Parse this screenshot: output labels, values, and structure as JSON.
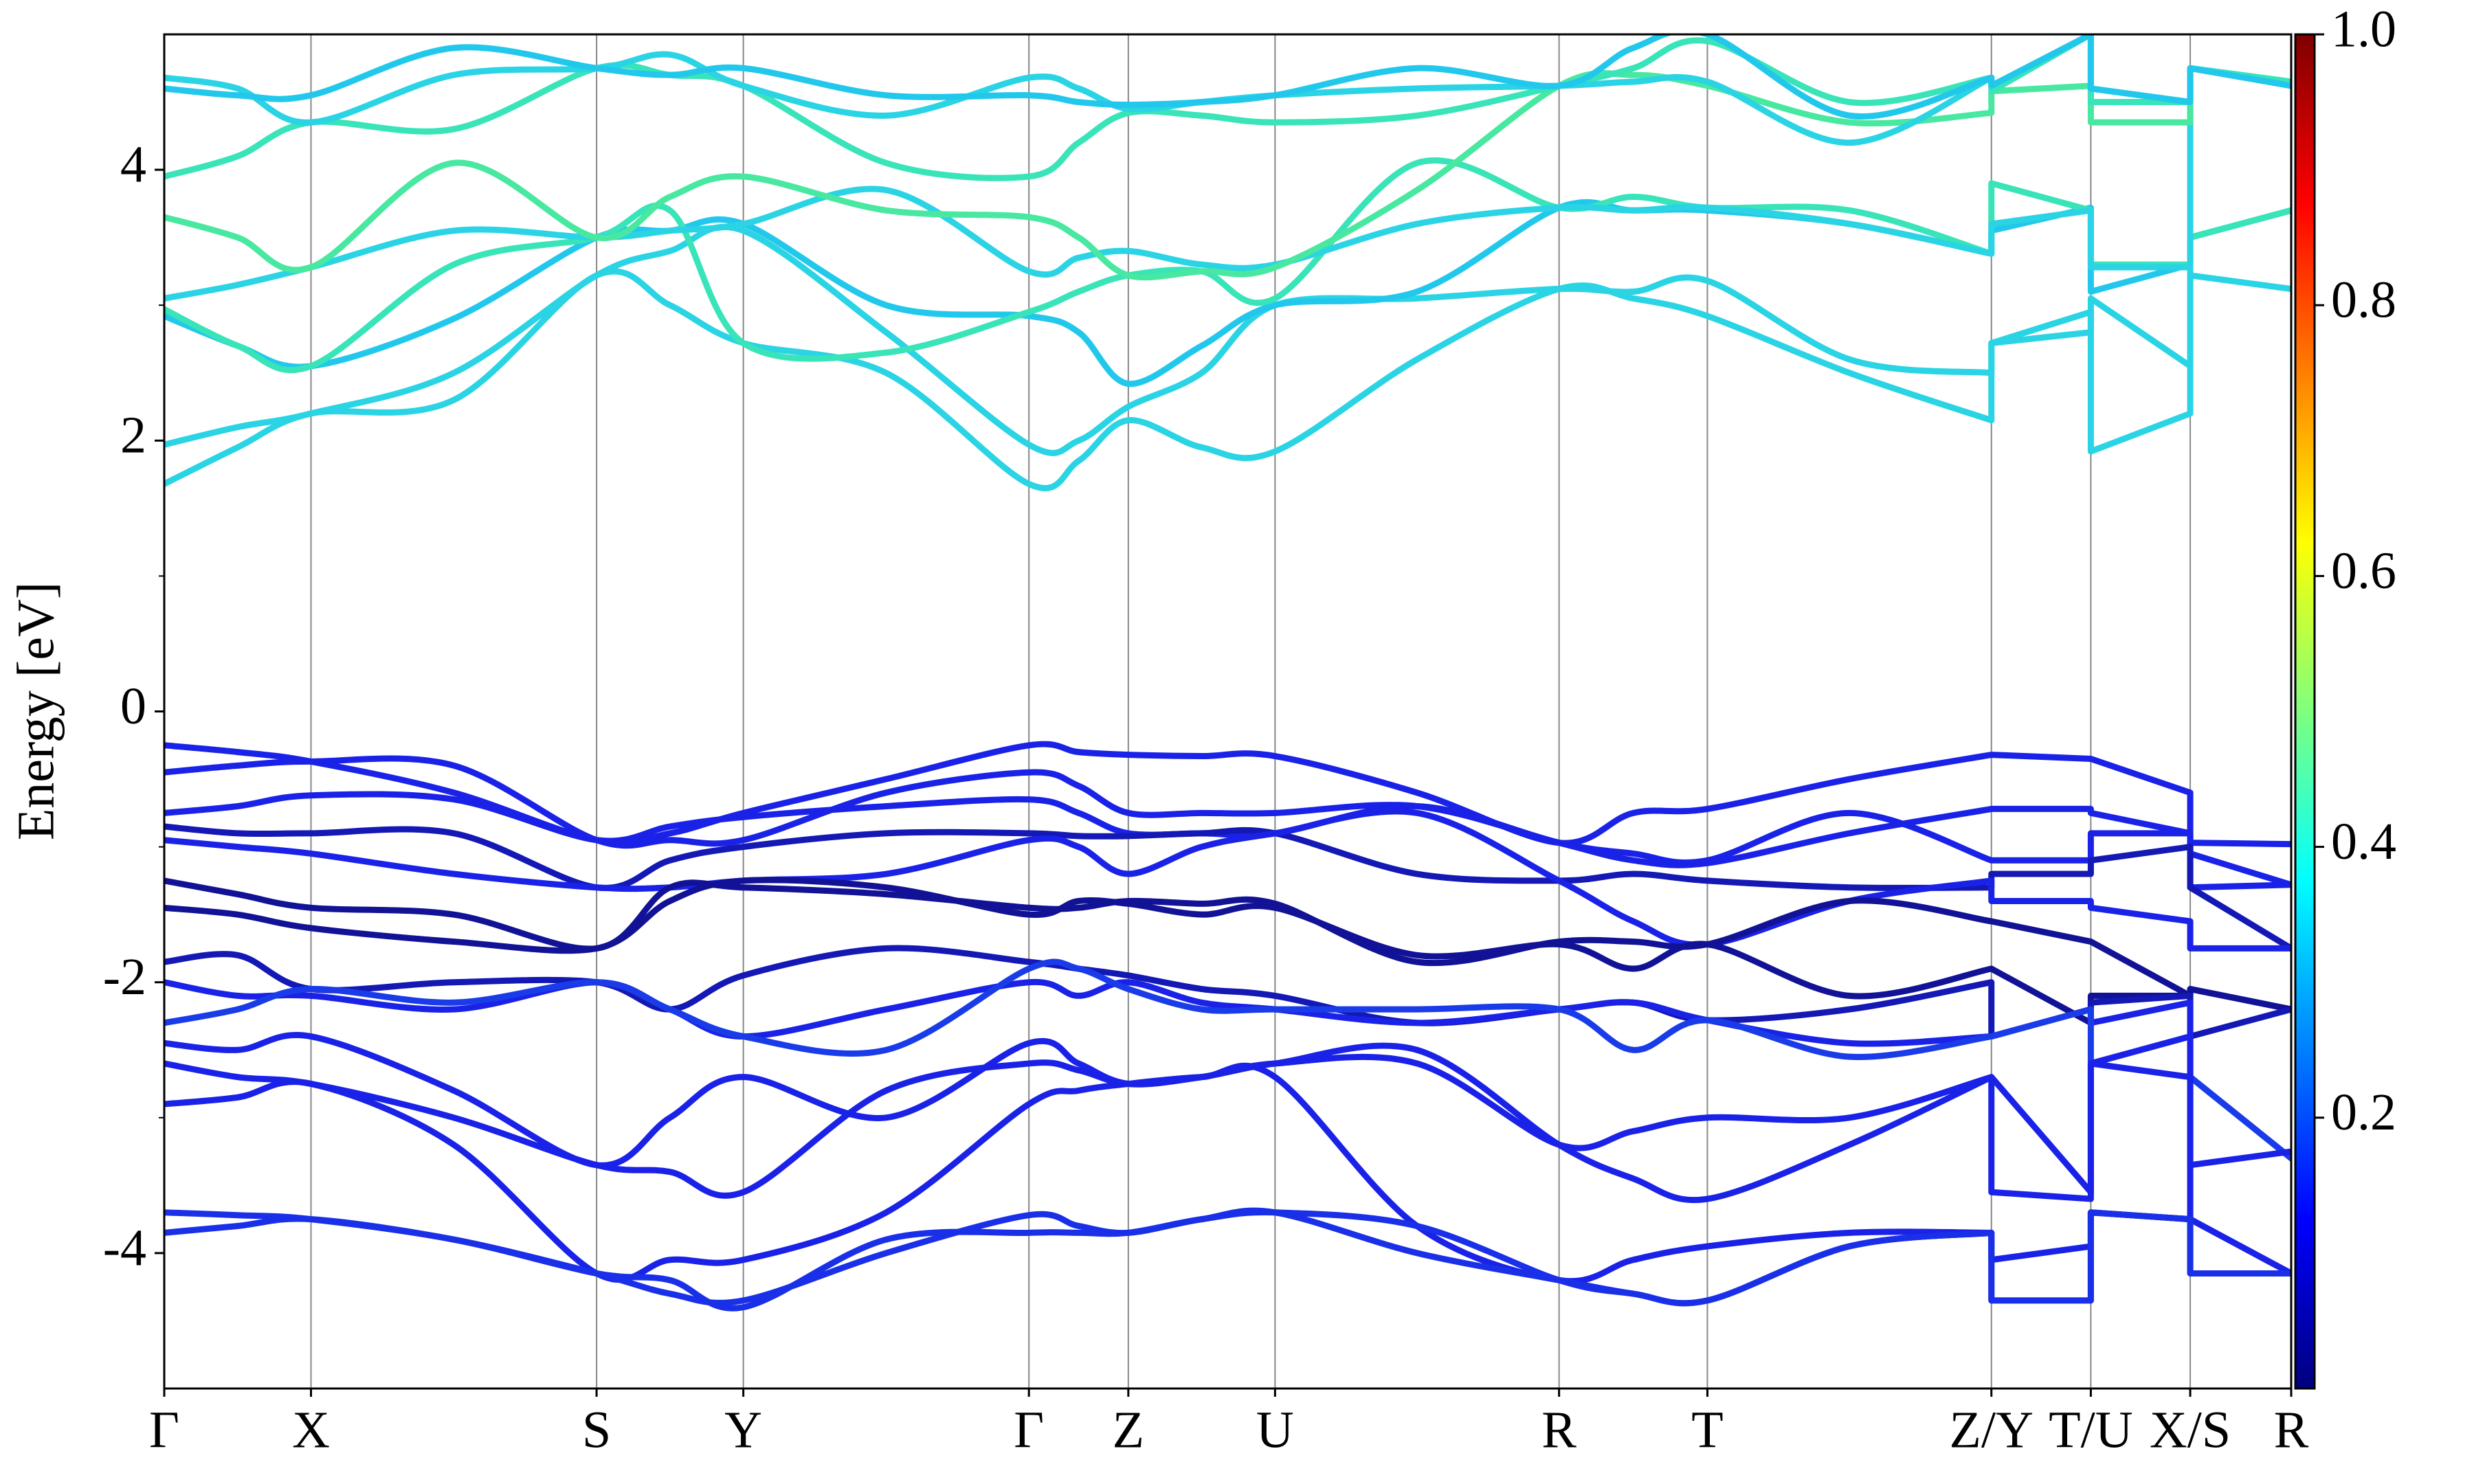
{
  "chart_data": {
    "type": "line",
    "y_label": "Energy [eV]",
    "x": [
      0,
      0.465,
      0.93,
      1.835,
      2.74,
      3.205,
      3.67,
      4.575,
      5.48,
      5.795,
      6.11,
      6.575,
      7.04,
      7.94,
      8.84,
      9.31,
      9.78,
      10.68,
      11.58,
      11.58,
      12.21,
      12.21,
      12.84,
      12.84,
      13.48
    ],
    "xlim": [
      0,
      13.48
    ],
    "xticks": [
      {
        "value": 0,
        "label": "Γ"
      },
      {
        "value": 0.93,
        "label": "X"
      },
      {
        "value": 2.74,
        "label": "S"
      },
      {
        "value": 3.67,
        "label": "Y"
      },
      {
        "value": 5.48,
        "label": "Γ"
      },
      {
        "value": 6.11,
        "label": "Z"
      },
      {
        "value": 7.04,
        "label": "U"
      },
      {
        "value": 8.84,
        "label": "R"
      },
      {
        "value": 9.78,
        "label": "T"
      },
      {
        "value": 11.58,
        "label": "Z/Y"
      },
      {
        "value": 12.21,
        "label": "T/U"
      },
      {
        "value": 12.84,
        "label": "X/S"
      },
      {
        "value": 13.48,
        "label": "R"
      }
    ],
    "ylim": [
      -5,
      5
    ],
    "yticks": [
      -4,
      -2,
      0,
      2,
      4
    ],
    "yminorticks": [
      -3,
      -1,
      1,
      3
    ],
    "grid": true,
    "colorbar": {
      "cmap": "jet",
      "lim": [
        0,
        1
      ],
      "ticks": [
        0.2,
        0.4,
        0.6,
        0.8,
        {
          "value": 1,
          "label": "1.0"
        }
      ]
    },
    "series": [
      {
        "color": "#2ad4e4",
        "values": [
          1.68,
          1.95,
          2.2,
          2.3,
          3.22,
          3.0,
          2.72,
          2.5,
          1.68,
          1.85,
          2.15,
          1.95,
          1.92,
          2.6,
          3.12,
          3.05,
          2.92,
          2.5,
          2.15,
          2.72,
          2.95,
          1.92,
          2.2,
          3.22,
          3.12
        ]
      },
      {
        "color": "#2ad4e4",
        "values": [
          1.97,
          2.1,
          2.2,
          2.5,
          3.22,
          3.4,
          3.55,
          2.8,
          1.97,
          2.0,
          2.25,
          2.5,
          3.0,
          3.05,
          3.12,
          3.1,
          3.18,
          2.6,
          2.5,
          2.72,
          2.8,
          3.05,
          2.55,
          3.5,
          3.7
        ]
      },
      {
        "color": "#22c8ec",
        "values": [
          2.92,
          2.7,
          2.55,
          2.9,
          3.5,
          3.55,
          3.6,
          3.0,
          2.92,
          2.8,
          2.42,
          2.7,
          3.0,
          3.1,
          3.72,
          3.7,
          3.7,
          3.6,
          3.38,
          3.55,
          3.72,
          3.1,
          3.3,
          3.5,
          3.7
        ]
      },
      {
        "color": "#38e4b8",
        "values": [
          2.97,
          2.7,
          2.55,
          3.3,
          3.5,
          3.7,
          2.72,
          2.65,
          2.95,
          3.1,
          3.22,
          3.25,
          3.05,
          4.05,
          3.72,
          3.8,
          3.72,
          3.7,
          3.38,
          3.9,
          3.7,
          3.3,
          3.3,
          3.5,
          3.7
        ]
      },
      {
        "color": "#2ad4e4",
        "values": [
          3.05,
          3.15,
          3.28,
          3.55,
          3.5,
          3.55,
          3.6,
          3.85,
          3.25,
          3.35,
          3.4,
          3.3,
          3.3,
          3.6,
          3.72,
          3.7,
          3.72,
          3.6,
          3.38,
          3.6,
          3.7,
          3.28,
          3.28,
          4.75,
          4.65
        ]
      },
      {
        "color": "#48e8a0",
        "values": [
          3.65,
          3.5,
          3.28,
          4.05,
          3.5,
          3.8,
          3.95,
          3.7,
          3.65,
          3.5,
          3.22,
          3.25,
          3.28,
          3.85,
          4.62,
          4.7,
          4.62,
          4.35,
          4.42,
          4.58,
          4.62,
          4.35,
          4.35,
          4.75,
          4.65
        ]
      },
      {
        "color": "#38e4b8",
        "values": [
          3.95,
          4.1,
          4.35,
          4.3,
          4.75,
          4.7,
          4.62,
          4.05,
          3.95,
          4.2,
          4.42,
          4.4,
          4.35,
          4.4,
          4.62,
          4.75,
          4.95,
          4.5,
          4.68,
          4.58,
          5.0,
          4.5,
          4.5,
          4.75,
          4.65
        ]
      },
      {
        "color": "#2ad4e4",
        "values": [
          4.68,
          4.6,
          4.35,
          4.7,
          4.75,
          4.85,
          4.62,
          4.4,
          4.68,
          4.6,
          4.45,
          4.5,
          4.55,
          4.6,
          4.62,
          4.65,
          4.65,
          4.2,
          4.68,
          4.62,
          5.0,
          4.6,
          4.5,
          4.75,
          4.62
        ]
      },
      {
        "color": "#22c8ec",
        "values": [
          4.6,
          4.55,
          4.55,
          4.9,
          4.75,
          4.7,
          4.75,
          4.55,
          4.55,
          4.5,
          4.48,
          4.5,
          4.55,
          4.75,
          4.62,
          4.9,
          5.0,
          4.4,
          4.68,
          4.62,
          5.0,
          4.6,
          4.5,
          4.75,
          4.62
        ]
      },
      {
        "color": "#1a22e8",
        "values": [
          -0.25,
          -0.3,
          -0.37,
          -0.6,
          -0.95,
          -0.9,
          -0.75,
          -0.5,
          -0.25,
          -0.3,
          -0.32,
          -0.33,
          -0.33,
          -0.6,
          -0.97,
          -0.75,
          -0.72,
          -0.5,
          -0.32,
          -0.32,
          -0.35,
          -0.35,
          -0.6,
          -0.97,
          -0.98
        ]
      },
      {
        "color": "#1a22e8",
        "values": [
          -0.45,
          -0.4,
          -0.37,
          -0.4,
          -0.95,
          -0.95,
          -0.95,
          -0.6,
          -0.45,
          -0.55,
          -0.75,
          -0.75,
          -0.75,
          -0.7,
          -0.97,
          -1.1,
          -1.12,
          -0.9,
          -0.72,
          -0.72,
          -0.72,
          -0.75,
          -0.9,
          -1.05,
          -1.28
        ]
      },
      {
        "color": "#1a22e8",
        "values": [
          -0.75,
          -0.7,
          -0.62,
          -0.65,
          -0.95,
          -0.85,
          -0.78,
          -0.7,
          -0.65,
          -0.75,
          -0.9,
          -0.9,
          -0.9,
          -0.7,
          -0.97,
          -1.05,
          -1.1,
          -0.75,
          -1.1,
          -1.1,
          -1.1,
          -0.9,
          -0.9,
          -1.3,
          -1.28
        ]
      },
      {
        "color": "#1418b4",
        "values": [
          -0.85,
          -0.9,
          -0.9,
          -0.9,
          -1.3,
          -1.1,
          -1.0,
          -0.9,
          -0.9,
          -0.92,
          -0.92,
          -0.9,
          -0.9,
          -1.2,
          -1.25,
          -1.2,
          -1.25,
          -1.3,
          -1.3,
          -1.2,
          -1.2,
          -1.1,
          -1.0,
          -1.3,
          -1.75
        ]
      },
      {
        "color": "#1a22e8",
        "values": [
          -0.95,
          -1.0,
          -1.05,
          -1.2,
          -1.3,
          -1.3,
          -1.25,
          -1.2,
          -0.95,
          -1.0,
          -1.2,
          -1.0,
          -0.9,
          -0.75,
          -1.25,
          -1.55,
          -1.72,
          -1.4,
          -1.25,
          -1.4,
          -1.4,
          -1.45,
          -1.55,
          -1.75,
          -1.75
        ]
      },
      {
        "color": "#121296",
        "values": [
          -1.25,
          -1.35,
          -1.45,
          -1.5,
          -1.75,
          -1.3,
          -1.3,
          -1.35,
          -1.45,
          -1.45,
          -1.4,
          -1.42,
          -1.42,
          -1.85,
          -1.7,
          -1.7,
          -1.72,
          -1.4,
          -1.55,
          -1.55,
          -1.7,
          -1.7,
          -2.1,
          -2.05,
          -2.2
        ]
      },
      {
        "color": "#121296",
        "values": [
          -1.45,
          -1.5,
          -1.6,
          -1.7,
          -1.75,
          -1.4,
          -1.25,
          -1.3,
          -1.5,
          -1.4,
          -1.42,
          -1.5,
          -1.45,
          -1.8,
          -1.72,
          -1.9,
          -1.72,
          -2.1,
          -1.9,
          -1.9,
          -2.3,
          -2.1,
          -2.1,
          -2.05,
          -2.2
        ]
      },
      {
        "color": "#1418b4",
        "values": [
          -1.85,
          -1.8,
          -2.05,
          -2.0,
          -2.0,
          -2.2,
          -1.95,
          -1.75,
          -1.85,
          -1.9,
          -1.95,
          -2.05,
          -2.1,
          -2.3,
          -2.2,
          -2.15,
          -2.28,
          -2.2,
          -2.0,
          -2.4,
          -2.2,
          -2.15,
          -2.1,
          -2.4,
          -2.2
        ]
      },
      {
        "color": "#1a22e8",
        "values": [
          -2.0,
          -2.1,
          -2.1,
          -2.2,
          -2.0,
          -2.2,
          -2.4,
          -2.2,
          -2.0,
          -2.1,
          -2.0,
          -2.15,
          -2.2,
          -2.3,
          -2.2,
          -2.15,
          -2.28,
          -2.45,
          -2.4,
          -2.4,
          -2.2,
          -2.3,
          -2.15,
          -2.7,
          -3.3
        ]
      },
      {
        "color": "#1a3ce8",
        "values": [
          -2.3,
          -2.2,
          -2.05,
          -2.15,
          -2.0,
          -2.2,
          -2.4,
          -2.5,
          -1.9,
          -1.9,
          -2.05,
          -2.2,
          -2.2,
          -2.2,
          -2.2,
          -2.5,
          -2.28,
          -2.55,
          -2.4,
          -2.4,
          -2.2,
          -2.6,
          -2.4,
          -2.7,
          -3.3
        ]
      },
      {
        "color": "#1a22e8",
        "values": [
          -2.45,
          -2.5,
          -2.4,
          -2.8,
          -3.35,
          -3.0,
          -2.7,
          -3.0,
          -2.45,
          -2.6,
          -2.75,
          -2.7,
          -2.6,
          -2.6,
          -3.2,
          -3.1,
          -3.0,
          -3.0,
          -2.7,
          -2.7,
          -3.55,
          -2.6,
          -2.7,
          -3.35,
          -3.25
        ]
      },
      {
        "color": "#1a22e8",
        "values": [
          -2.6,
          -2.7,
          -2.75,
          -3.0,
          -3.35,
          -3.4,
          -3.55,
          -2.8,
          -2.6,
          -2.65,
          -2.75,
          -2.7,
          -2.6,
          -2.5,
          -3.2,
          -3.45,
          -3.6,
          -3.2,
          -2.7,
          -3.55,
          -3.6,
          -2.6,
          -2.4,
          -3.75,
          -4.15
        ]
      },
      {
        "color": "#1a22e8",
        "values": [
          -2.9,
          -2.85,
          -2.75,
          -3.2,
          -4.15,
          -4.05,
          -4.05,
          -3.7,
          -2.9,
          -2.8,
          -2.75,
          -2.7,
          -2.7,
          -3.8,
          -4.2,
          -4.05,
          -3.95,
          -3.85,
          -3.85,
          -4.05,
          -3.95,
          -3.7,
          -3.75,
          -3.75,
          -4.15
        ]
      },
      {
        "color": "#1a30e8",
        "values": [
          -3.7,
          -3.72,
          -3.75,
          -3.9,
          -4.15,
          -4.3,
          -4.35,
          -4.0,
          -3.72,
          -3.8,
          -3.85,
          -3.75,
          -3.7,
          -3.8,
          -4.2,
          -4.3,
          -4.35,
          -3.95,
          -3.85,
          -4.35,
          -4.35,
          -3.7,
          -3.75,
          -4.15,
          -4.15
        ]
      },
      {
        "color": "#1a30e8",
        "values": [
          -3.85,
          -3.8,
          -3.75,
          -3.9,
          -4.15,
          -4.2,
          -4.4,
          -3.9,
          -3.85,
          -3.85,
          -3.85,
          -3.75,
          -3.7,
          -4.0,
          -4.2,
          -4.3,
          -4.35,
          -3.95,
          -3.85,
          -4.35,
          -4.35,
          -3.7,
          -3.75,
          -4.15,
          -4.15
        ]
      }
    ]
  }
}
